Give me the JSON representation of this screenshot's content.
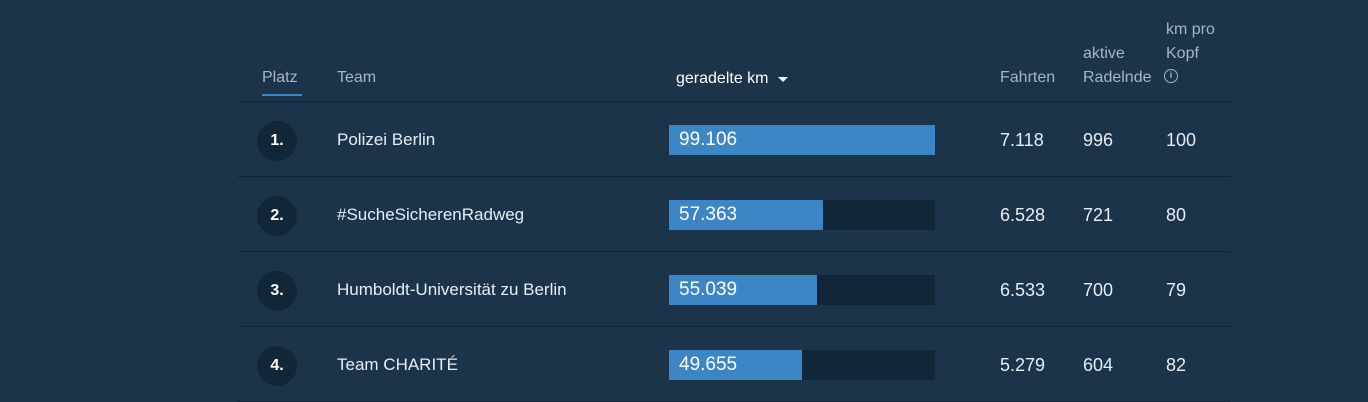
{
  "header": {
    "platz": "Platz",
    "team": "Team",
    "km": "geradelte km",
    "fahrten": "Fahrten",
    "aktive": "aktive Radelnde",
    "km_pro_kopf": "km pro Kopf",
    "info_icon": "i"
  },
  "colors": {
    "background": "#1b3449",
    "bar": "#3d86c6",
    "bar_track": "#112738",
    "active_tab_underline": "#3d86c6"
  },
  "max_km": 99106,
  "rows": [
    {
      "rank": "1.",
      "team": "Polizei Berlin",
      "km": "99.106",
      "km_value": 99106,
      "fahrten": "7.118",
      "aktive": "996",
      "km_pro_kopf": "100"
    },
    {
      "rank": "2.",
      "team": "#SucheSicherenRadweg",
      "km": "57.363",
      "km_value": 57363,
      "fahrten": "6.528",
      "aktive": "721",
      "km_pro_kopf": "80"
    },
    {
      "rank": "3.",
      "team": "Humboldt-Universität zu Berlin",
      "km": "55.039",
      "km_value": 55039,
      "fahrten": "6.533",
      "aktive": "700",
      "km_pro_kopf": "79"
    },
    {
      "rank": "4.",
      "team": "Team CHARITÉ",
      "km": "49.655",
      "km_value": 49655,
      "fahrten": "5.279",
      "aktive": "604",
      "km_pro_kopf": "82"
    }
  ]
}
